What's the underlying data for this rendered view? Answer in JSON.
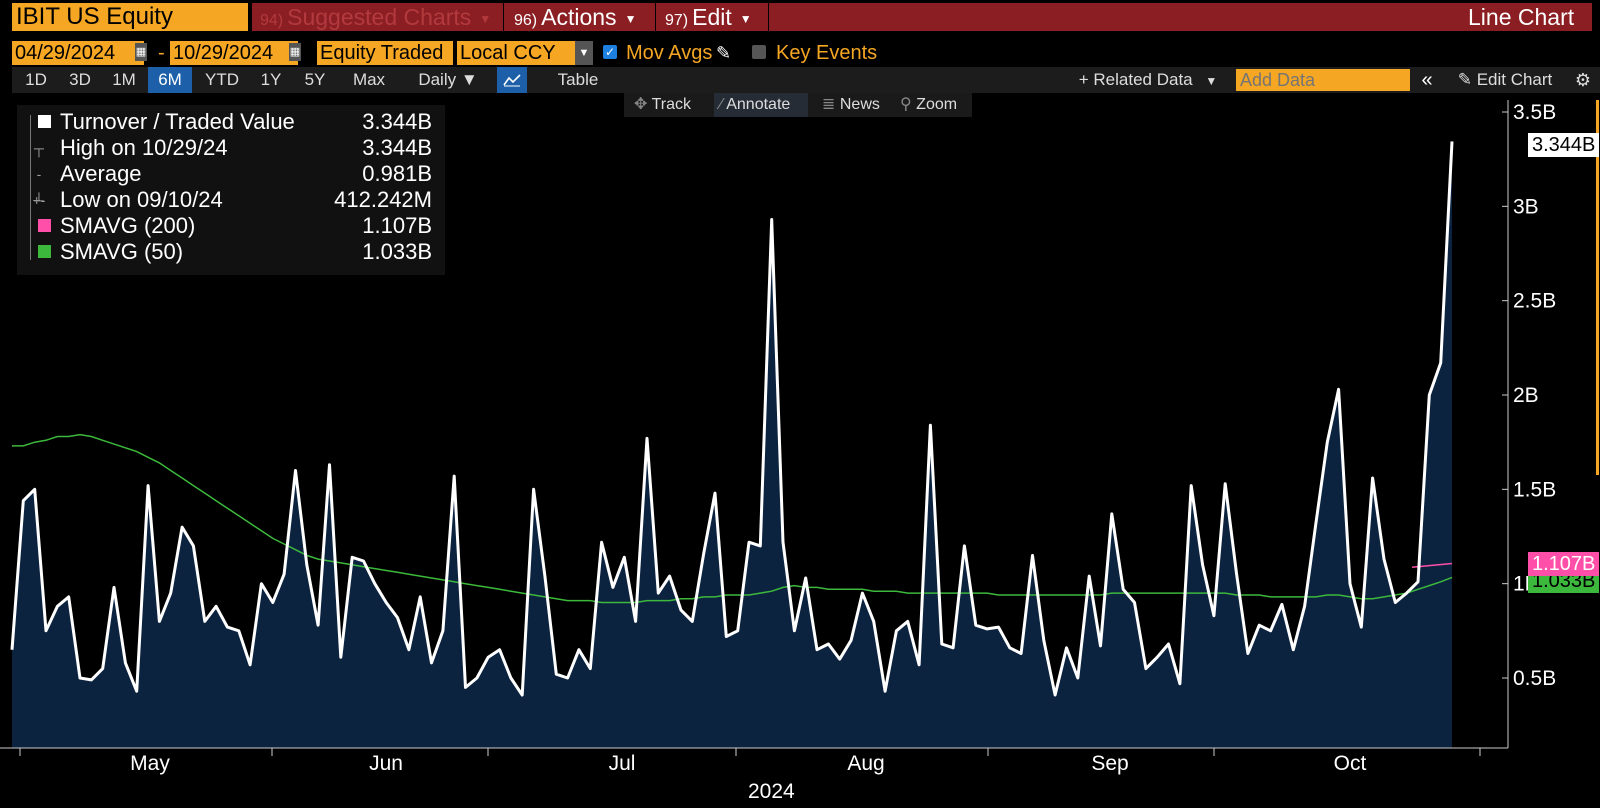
{
  "header": {
    "ticker": "IBIT US Equity",
    "suggested": {
      "num": "94)",
      "label": "Suggested Charts"
    },
    "actions": {
      "num": "96)",
      "label": "Actions"
    },
    "edit": {
      "num": "97)",
      "label": "Edit"
    },
    "chart_type": "Line Chart"
  },
  "controls": {
    "start_date": "04/29/2024",
    "date_sep": "-",
    "end_date": "10/29/2024",
    "field": "Equity Traded",
    "currency": "Local CCY",
    "mov_avgs": {
      "label": "Mov Avgs",
      "checked": true
    },
    "key_events": {
      "label": "Key Events",
      "checked": false
    }
  },
  "periods": [
    "1D",
    "3D",
    "1M",
    "6M",
    "YTD",
    "1Y",
    "5Y",
    "Max"
  ],
  "active_period": "6M",
  "toolbar": {
    "frequency": "Daily",
    "table": "Table",
    "related_data": "Related Data",
    "add_data_placeholder": "Add Data",
    "edit_chart": "Edit Chart"
  },
  "chart_tools": [
    "Track",
    "Annotate",
    "News",
    "Zoom"
  ],
  "legend": {
    "rows": [
      {
        "label": "Turnover / Traded Value",
        "value": "3.344B"
      },
      {
        "label": "High on 10/29/24",
        "value": "3.344B"
      },
      {
        "label": "Average",
        "value": "0.981B"
      },
      {
        "label": "Low on 09/10/24",
        "value": "412.242M"
      },
      {
        "label": "SMAVG (200)",
        "value": "1.107B"
      },
      {
        "label": "SMAVG (50)",
        "value": "1.033B"
      }
    ]
  },
  "colors": {
    "accent": "#f5a623",
    "header_red": "#8b1e22",
    "active_blue": "#1d5fa8",
    "area_fill": "#0c2340",
    "series_line": "#ffffff",
    "smavg200": "#ff4fa8",
    "smavg50": "#3cb83c"
  },
  "icons": {
    "calendar": "calendar-icon",
    "line_chart": "line-chart-icon",
    "collapse": "double-chevron-left-icon",
    "settings": "gear-icon"
  },
  "chart_data": {
    "type": "area",
    "title": "",
    "xlabel": "2024",
    "ylabel": "",
    "ylim": [
      0,
      3.5
    ],
    "yticks": [
      "0.5B",
      "1B",
      "1.5B",
      "2B",
      "2.5B",
      "3B",
      "3.5B"
    ],
    "xticks": [
      "May",
      "Jun",
      "Jul",
      "Aug",
      "Sep",
      "Oct"
    ],
    "last_value_flags": {
      "turnover": "3.344B",
      "smavg200": "1.107B",
      "smavg50": "1.033B"
    },
    "series": [
      {
        "name": "Turnover / Traded Value",
        "values": [
          0.65,
          1.44,
          1.5,
          0.75,
          0.88,
          0.93,
          0.5,
          0.49,
          0.55,
          0.98,
          0.58,
          0.43,
          1.52,
          0.8,
          0.95,
          1.3,
          1.2,
          0.8,
          0.88,
          0.77,
          0.75,
          0.57,
          1.0,
          0.9,
          1.05,
          1.6,
          1.1,
          0.78,
          1.63,
          0.61,
          1.14,
          1.12,
          1.0,
          0.9,
          0.82,
          0.65,
          0.93,
          0.58,
          0.75,
          1.57,
          0.45,
          0.5,
          0.61,
          0.65,
          0.5,
          0.41,
          1.5,
          1.04,
          0.52,
          0.5,
          0.65,
          0.55,
          1.22,
          0.98,
          1.14,
          0.8,
          1.77,
          0.95,
          1.04,
          0.86,
          0.8,
          1.16,
          1.48,
          0.72,
          0.75,
          1.22,
          1.2,
          2.93,
          1.22,
          0.75,
          1.03,
          0.65,
          0.68,
          0.6,
          0.7,
          0.95,
          0.8,
          0.43,
          0.75,
          0.8,
          0.57,
          1.84,
          0.68,
          0.66,
          1.2,
          0.78,
          0.76,
          0.77,
          0.66,
          0.63,
          1.15,
          0.7,
          0.41,
          0.66,
          0.5,
          1.04,
          0.67,
          1.37,
          0.97,
          0.9,
          0.55,
          0.61,
          0.68,
          0.47,
          1.52,
          1.1,
          0.83,
          1.53,
          1.05,
          0.63,
          0.78,
          0.75,
          0.89,
          0.65,
          0.88,
          1.32,
          1.75,
          2.03,
          1.0,
          0.77,
          1.56,
          1.13,
          0.9,
          0.95,
          1.01,
          2.0,
          2.17,
          3.344
        ]
      },
      {
        "name": "SMAVG (200)",
        "values": [
          1.107
        ]
      },
      {
        "name": "SMAVG (50)",
        "values": [
          1.73,
          1.73,
          1.75,
          1.76,
          1.78,
          1.78,
          1.79,
          1.78,
          1.76,
          1.74,
          1.72,
          1.7,
          1.67,
          1.64,
          1.6,
          1.56,
          1.52,
          1.48,
          1.44,
          1.4,
          1.36,
          1.32,
          1.28,
          1.24,
          1.21,
          1.18,
          1.15,
          1.13,
          1.12,
          1.11,
          1.1,
          1.09,
          1.08,
          1.07,
          1.06,
          1.05,
          1.04,
          1.03,
          1.02,
          1.01,
          1.0,
          0.99,
          0.98,
          0.97,
          0.96,
          0.95,
          0.94,
          0.93,
          0.92,
          0.91,
          0.91,
          0.91,
          0.9,
          0.9,
          0.9,
          0.9,
          0.91,
          0.91,
          0.91,
          0.92,
          0.92,
          0.93,
          0.93,
          0.94,
          0.94,
          0.94,
          0.95,
          0.96,
          0.98,
          0.99,
          0.98,
          0.98,
          0.97,
          0.97,
          0.97,
          0.97,
          0.96,
          0.96,
          0.96,
          0.95,
          0.95,
          0.95,
          0.95,
          0.95,
          0.95,
          0.95,
          0.95,
          0.94,
          0.94,
          0.94,
          0.94,
          0.94,
          0.94,
          0.94,
          0.94,
          0.94,
          0.94,
          0.95,
          0.95,
          0.95,
          0.95,
          0.95,
          0.95,
          0.95,
          0.95,
          0.95,
          0.95,
          0.95,
          0.94,
          0.94,
          0.94,
          0.93,
          0.93,
          0.93,
          0.93,
          0.93,
          0.94,
          0.94,
          0.93,
          0.92,
          0.92,
          0.93,
          0.94,
          0.95,
          0.97,
          0.99,
          1.01,
          1.033
        ]
      }
    ]
  }
}
